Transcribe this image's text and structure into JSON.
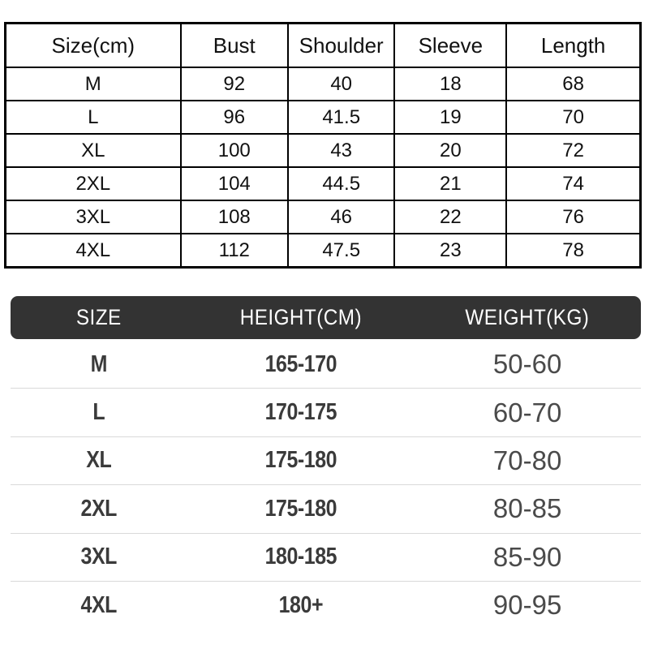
{
  "chart_data": [
    {
      "type": "table",
      "name": "garment_measurements",
      "columns": [
        "Size(cm)",
        "Bust",
        "Shoulder",
        "Sleeve",
        "Length"
      ],
      "rows": [
        [
          "M",
          "92",
          "40",
          "18",
          "68"
        ],
        [
          "L",
          "96",
          "41.5",
          "19",
          "70"
        ],
        [
          "XL",
          "100",
          "43",
          "20",
          "72"
        ],
        [
          "2XL",
          "104",
          "44.5",
          "21",
          "74"
        ],
        [
          "3XL",
          "108",
          "46",
          "22",
          "76"
        ],
        [
          "4XL",
          "112",
          "47.5",
          "23",
          "78"
        ]
      ]
    },
    {
      "type": "table",
      "name": "size_recommendation",
      "columns": [
        "SIZE",
        "HEIGHT(CM)",
        "WEIGHT(KG)"
      ],
      "rows": [
        [
          "M",
          "165-170",
          "50-60"
        ],
        [
          "L",
          "170-175",
          "60-70"
        ],
        [
          "XL",
          "175-180",
          "70-80"
        ],
        [
          "2XL",
          "175-180",
          "80-85"
        ],
        [
          "3XL",
          "180-185",
          "85-90"
        ],
        [
          "4XL",
          "180+",
          "90-95"
        ]
      ]
    }
  ],
  "colors": {
    "fit_header_bg": "#333333",
    "fit_header_text": "#ffffff",
    "table_border": "#000000",
    "row_separator": "#d9d9d9",
    "condensed_text": "#3b3b3b",
    "weight_text": "#4a4a4a"
  }
}
